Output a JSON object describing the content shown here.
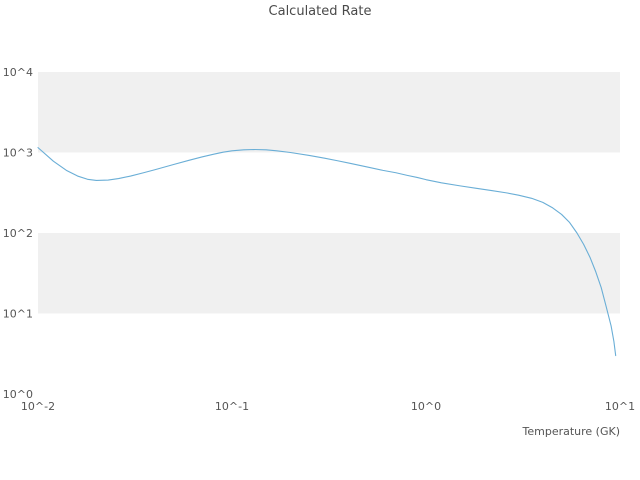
{
  "chart_data": {
    "type": "line",
    "title": "Calculated Rate",
    "xlabel": "Temperature (GK)",
    "ylabel": "",
    "x_scale": "log",
    "y_scale": "log",
    "xlim": [
      0.01,
      10
    ],
    "ylim": [
      1,
      10000
    ],
    "x_tick_labels": [
      "10^-2",
      "10^-1",
      "10^0",
      "10^1"
    ],
    "x_tick_values": [
      0.01,
      0.1,
      1,
      10
    ],
    "y_tick_labels": [
      "10^0",
      "10^1",
      "10^2",
      "10^3",
      "10^4"
    ],
    "y_tick_values": [
      1,
      10,
      100,
      1000,
      10000
    ],
    "grid": "alternating-horizontal-bands",
    "legend": "none",
    "line_color": "#6aaed6",
    "band_color": "#f0f0f0",
    "series": [
      {
        "name": "calculated-rate",
        "points": [
          [
            0.01,
            1150
          ],
          [
            0.012,
            780
          ],
          [
            0.014,
            600
          ],
          [
            0.016,
            510
          ],
          [
            0.018,
            465
          ],
          [
            0.02,
            450
          ],
          [
            0.023,
            455
          ],
          [
            0.026,
            475
          ],
          [
            0.03,
            510
          ],
          [
            0.035,
            560
          ],
          [
            0.04,
            610
          ],
          [
            0.05,
            710
          ],
          [
            0.06,
            800
          ],
          [
            0.07,
            880
          ],
          [
            0.08,
            950
          ],
          [
            0.09,
            1010
          ],
          [
            0.1,
            1050
          ],
          [
            0.115,
            1080
          ],
          [
            0.13,
            1090
          ],
          [
            0.15,
            1080
          ],
          [
            0.17,
            1050
          ],
          [
            0.2,
            1000
          ],
          [
            0.25,
            920
          ],
          [
            0.3,
            850
          ],
          [
            0.35,
            790
          ],
          [
            0.4,
            740
          ],
          [
            0.5,
            660
          ],
          [
            0.6,
            600
          ],
          [
            0.7,
            560
          ],
          [
            0.8,
            520
          ],
          [
            0.9,
            490
          ],
          [
            1.0,
            460
          ],
          [
            1.2,
            420
          ],
          [
            1.5,
            385
          ],
          [
            1.8,
            360
          ],
          [
            2.2,
            335
          ],
          [
            2.6,
            315
          ],
          [
            3.0,
            295
          ],
          [
            3.5,
            270
          ],
          [
            4.0,
            240
          ],
          [
            4.5,
            205
          ],
          [
            5.0,
            170
          ],
          [
            5.5,
            135
          ],
          [
            6.0,
            100
          ],
          [
            6.5,
            72
          ],
          [
            7.0,
            50
          ],
          [
            7.5,
            33
          ],
          [
            8.0,
            21
          ],
          [
            8.5,
            12
          ],
          [
            9.0,
            7
          ],
          [
            9.3,
            4.5
          ],
          [
            9.5,
            3
          ]
        ]
      }
    ]
  }
}
